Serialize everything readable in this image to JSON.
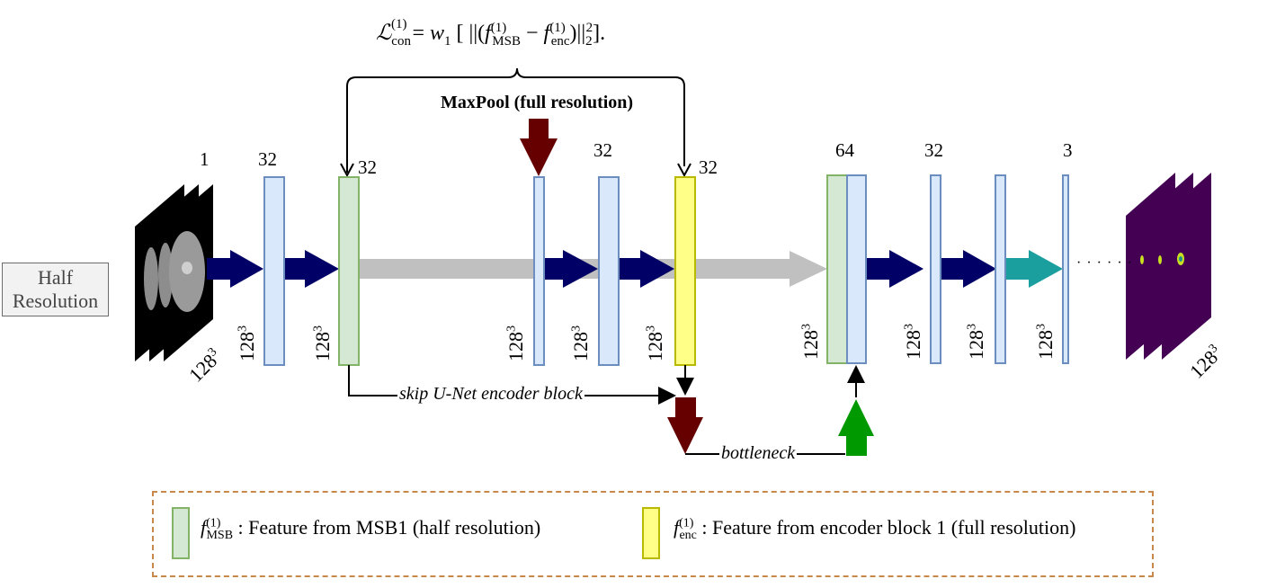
{
  "formula": {
    "L": "ℒ",
    "L_sub": "con",
    "L_sup": "(1)",
    "eq": "= ",
    "w": "w",
    "w_sub": "1",
    "open": " [ ||(",
    "f": "f",
    "f_msb_sup": "(1)",
    "f_msb_sub": "MSB",
    "minus": " − ",
    "f_enc_sup": "(1)",
    "f_enc_sub": "enc",
    "close": ")||",
    "norm_sub": "2",
    "norm_sup": "2",
    "end": "]."
  },
  "maxpool_label": "MaxPool (full resolution)",
  "half_resolution": [
    "Half",
    "Resolution"
  ],
  "channels": [
    "1",
    "32",
    "32",
    "32",
    "32",
    "64",
    "32",
    "3"
  ],
  "dimension": {
    "base": "128",
    "exp": "3"
  },
  "skip_label": "skip U-Net encoder block",
  "bottleneck_label": "bottleneck",
  "ellipsis": "· · · · · ·",
  "legend": {
    "msb": {
      "sup": "(1)",
      "sub": "MSB",
      "text": " : Feature from MSB1 (half resolution)"
    },
    "enc": {
      "sup": "(1)",
      "sub": "enc",
      "text": " : Feature from encoder block 1 (full resolution)"
    }
  },
  "colors": {
    "feature_blue_fill": "#dae8fc",
    "feature_blue_stroke": "#6c8ebf",
    "msb_green_fill": "#d5e8d4",
    "msb_green_stroke": "#82b366",
    "enc_yellow_fill": "#ffff88",
    "enc_yellow_stroke": "#b9b900",
    "conv_arrow_navy": "#000066",
    "skip_arrow_gray": "#c0c0c0",
    "maxpool_arrow": "#660000",
    "upsample_arrow": "#009900",
    "output_arrow_teal": "#1a9e9e",
    "output_volume": "#440154",
    "legend_border": "#c8884a"
  }
}
